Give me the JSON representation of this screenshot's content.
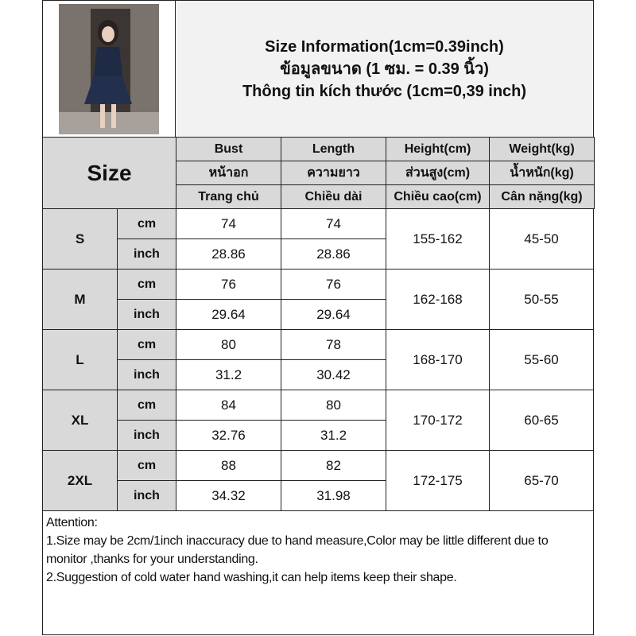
{
  "title": {
    "line1": "Size Information(1cm=0.39inch)",
    "line2": "ข้อมูลขนาด (1 ซม. = 0.39 นิ้ว)",
    "line3": "Thông tin kích thước (1cm=0,39 inch)"
  },
  "size_label": "Size",
  "columns": [
    {
      "en": "Bust",
      "th": "หน้าอก",
      "vi": "Trang chủ"
    },
    {
      "en": "Length",
      "th": "ความยาว",
      "vi": "Chiều dài"
    },
    {
      "en": "Height(cm)",
      "th": "ส่วนสูง(cm)",
      "vi": "Chiều cao(cm)"
    },
    {
      "en": "Weight(kg)",
      "th": "น้ำหนัก(kg)",
      "vi": "Cân nặng(kg)"
    }
  ],
  "units": {
    "cm": "cm",
    "inch": "inch"
  },
  "rows": [
    {
      "size": "S",
      "bust_cm": "74",
      "length_cm": "74",
      "bust_in": "28.86",
      "length_in": "28.86",
      "height": "155-162",
      "weight": "45-50"
    },
    {
      "size": "M",
      "bust_cm": "76",
      "length_cm": "76",
      "bust_in": "29.64",
      "length_in": "29.64",
      "height": "162-168",
      "weight": "50-55"
    },
    {
      "size": "L",
      "bust_cm": "80",
      "length_cm": "78",
      "bust_in": "31.2",
      "length_in": "30.42",
      "height": "168-170",
      "weight": "55-60"
    },
    {
      "size": "XL",
      "bust_cm": "84",
      "length_cm": "80",
      "bust_in": "32.76",
      "length_in": "31.2",
      "height": "170-172",
      "weight": "60-65"
    },
    {
      "size": "2XL",
      "bust_cm": "88",
      "length_cm": "82",
      "bust_in": "34.32",
      "length_in": "31.98",
      "height": "172-175",
      "weight": "65-70"
    }
  ],
  "attention": {
    "heading": "Attention:",
    "note1": "1.Size may be 2cm/1inch inaccuracy due to hand measure,Color may be little different due to monitor ,thanks for your understanding.",
    "note2": "2.Suggestion of cold water hand washing,it can help items keep their shape."
  }
}
